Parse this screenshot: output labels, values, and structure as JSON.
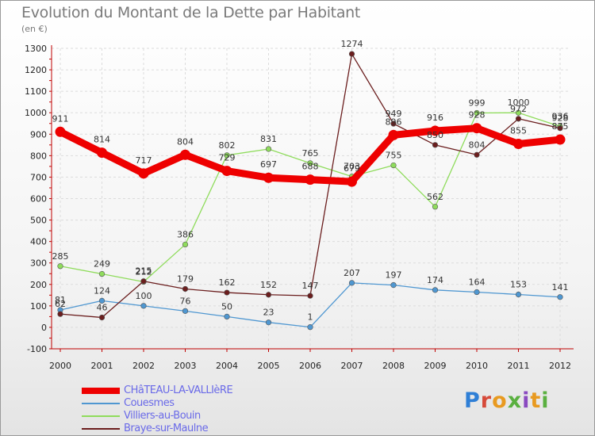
{
  "chart_data": {
    "type": "line",
    "title": "Evolution du Montant de la Dette par Habitant",
    "subtitle": "(en €)",
    "x": [
      "2000",
      "2001",
      "2002",
      "2003",
      "2004",
      "2005",
      "2006",
      "2007",
      "2008",
      "2009",
      "2010",
      "2011",
      "2012"
    ],
    "ylim": [
      -100,
      1300
    ],
    "yticks": [
      -100,
      0,
      100,
      200,
      300,
      400,
      500,
      600,
      700,
      800,
      900,
      1000,
      1100,
      1200,
      1300
    ],
    "grid": true,
    "legend_position": "bottom-left",
    "series": [
      {
        "name": "CHâTEAU-LA-VALLIèRE",
        "color": "#ee0000",
        "values": [
          911,
          814,
          717,
          804,
          729,
          697,
          688,
          679,
          896,
          916,
          928,
          855,
          875
        ],
        "labels": [
          "911",
          "814",
          "717",
          "804",
          "729",
          "697",
          "688",
          "679",
          "896",
          "916",
          "928",
          "855",
          "875"
        ]
      },
      {
        "name": "Couesmes",
        "color": "#4f97d1",
        "values": [
          81,
          124,
          100,
          76,
          50,
          23,
          1,
          207,
          197,
          174,
          164,
          153,
          141
        ],
        "labels": [
          "81",
          "124",
          "100",
          "76",
          "50",
          "23",
          "1",
          "207",
          "197",
          "174",
          "164",
          "153",
          "141"
        ]
      },
      {
        "name": "Villiers-au-Bouin",
        "color": "#8fdc5c",
        "values": [
          285,
          249,
          212,
          386,
          802,
          831,
          765,
          703,
          755,
          562,
          999,
          1000,
          936
        ],
        "labels": [
          "285",
          "249",
          "212",
          "386",
          "802",
          "831",
          "765",
          "703",
          "755",
          "562",
          "999",
          "1000",
          "936"
        ]
      },
      {
        "name": "Braye-sur-Maulne",
        "color": "#6b1e1e",
        "values": [
          62,
          46,
          215,
          179,
          162,
          152,
          147,
          1274,
          949,
          850,
          804,
          972,
          928
        ],
        "labels": [
          "62",
          "46",
          "215",
          "179",
          "162",
          "152",
          "147",
          "1274",
          "949",
          "850",
          "804",
          "972",
          "928"
        ]
      }
    ]
  },
  "logo_text": "Proxiti"
}
